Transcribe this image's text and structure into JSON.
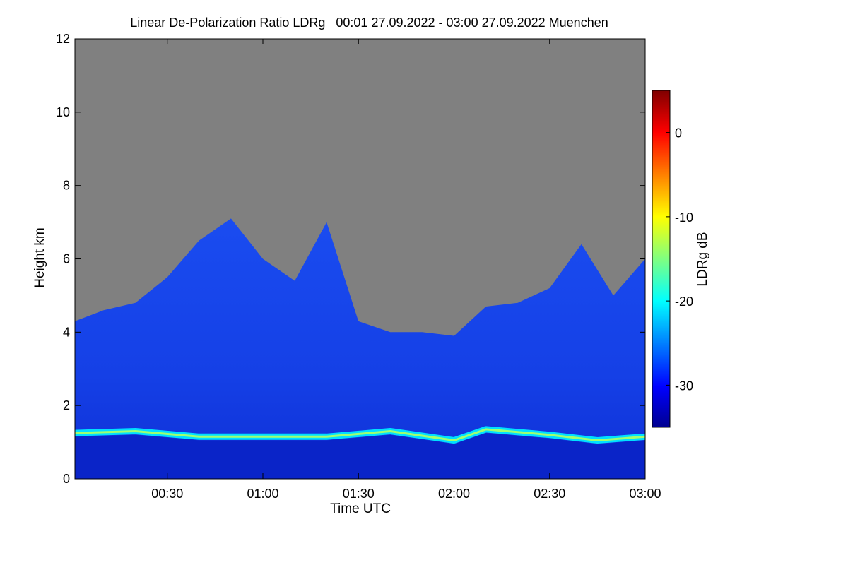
{
  "chart_data": {
    "type": "heatmap",
    "title": "Linear De-Polarization Ratio LDRg   00:01 27.09.2022 - 03:00 27.09.2022 Muenchen",
    "xlabel": "Time UTC",
    "ylabel": "Height km",
    "xlim": [
      "00:01",
      "03:00"
    ],
    "ylim": [
      0,
      12
    ],
    "x_ticks": [
      "00:30",
      "01:00",
      "01:30",
      "02:00",
      "02:30",
      "03:00"
    ],
    "y_ticks": [
      "0",
      "2",
      "4",
      "6",
      "8",
      "10",
      "12"
    ],
    "colorbar": {
      "label": "LDRg dB",
      "range": [
        -35,
        5
      ],
      "ticks": [
        "-30",
        "-20",
        "-10",
        "0"
      ],
      "colors": [
        "#00008f",
        "#0000ff",
        "#0080ff",
        "#00ffff",
        "#80ff80",
        "#ffff00",
        "#ff8000",
        "#ff0000",
        "#800000"
      ]
    },
    "no_data_color": "#808080",
    "cloud_top_km": [
      {
        "time": "00:01",
        "height": 4.3
      },
      {
        "time": "00:10",
        "height": 4.6
      },
      {
        "time": "00:20",
        "height": 4.8
      },
      {
        "time": "00:30",
        "height": 5.5
      },
      {
        "time": "00:40",
        "height": 6.5
      },
      {
        "time": "00:50",
        "height": 7.1
      },
      {
        "time": "01:00",
        "height": 6.0
      },
      {
        "time": "01:10",
        "height": 5.4
      },
      {
        "time": "01:20",
        "height": 7.0
      },
      {
        "time": "01:30",
        "height": 4.3
      },
      {
        "time": "01:40",
        "height": 4.0
      },
      {
        "time": "01:50",
        "height": 4.0
      },
      {
        "time": "02:00",
        "height": 3.9
      },
      {
        "time": "02:10",
        "height": 4.7
      },
      {
        "time": "02:20",
        "height": 4.8
      },
      {
        "time": "02:30",
        "height": 5.2
      },
      {
        "time": "02:40",
        "height": 6.4
      },
      {
        "time": "02:50",
        "height": 5.0
      },
      {
        "time": "03:00",
        "height": 6.0
      }
    ],
    "boundary_layer_km": [
      {
        "time": "00:01",
        "height": 1.25
      },
      {
        "time": "00:20",
        "height": 1.3
      },
      {
        "time": "00:40",
        "height": 1.15
      },
      {
        "time": "01:00",
        "height": 1.15
      },
      {
        "time": "01:20",
        "height": 1.15
      },
      {
        "time": "01:40",
        "height": 1.3
      },
      {
        "time": "02:00",
        "height": 1.05
      },
      {
        "time": "02:10",
        "height": 1.35
      },
      {
        "time": "02:30",
        "height": 1.2
      },
      {
        "time": "02:45",
        "height": 1.05
      },
      {
        "time": "03:00",
        "height": 1.15
      }
    ],
    "grid": false,
    "legend": "colorbar-right"
  }
}
